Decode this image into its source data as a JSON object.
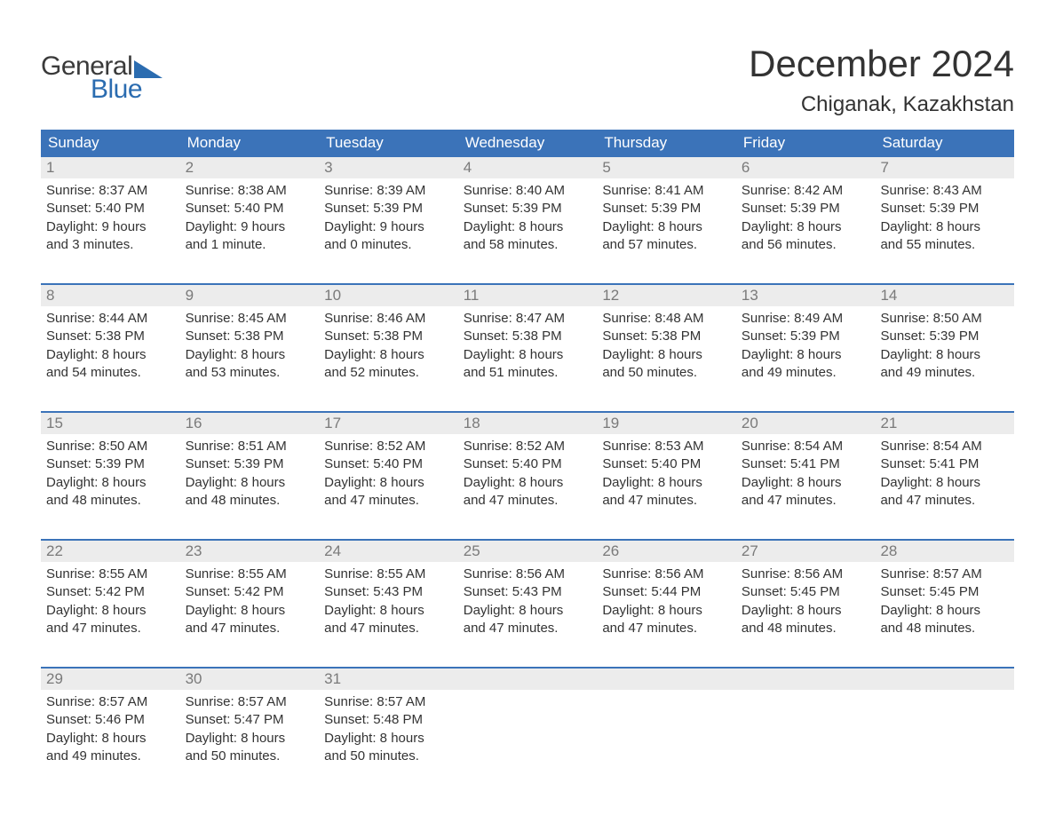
{
  "logo": {
    "general": "General",
    "blue": "Blue"
  },
  "title": "December 2024",
  "location": "Chiganak, Kazakhstan",
  "colors": {
    "brand_blue": "#3b73b9",
    "logo_blue": "#2b6cb0",
    "text": "#333333",
    "muted": "#7a7a7a",
    "stripe": "#ececec",
    "background": "#ffffff"
  },
  "typography": {
    "title_fontsize": 42,
    "location_fontsize": 24,
    "dayhead_fontsize": 17,
    "daynum_fontsize": 17,
    "body_fontsize": 15,
    "logo_fontsize": 30
  },
  "day_headers": [
    "Sunday",
    "Monday",
    "Tuesday",
    "Wednesday",
    "Thursday",
    "Friday",
    "Saturday"
  ],
  "weeks": [
    [
      {
        "n": "1",
        "sr": "Sunrise: 8:37 AM",
        "ss": "Sunset: 5:40 PM",
        "d1": "Daylight: 9 hours",
        "d2": "and 3 minutes."
      },
      {
        "n": "2",
        "sr": "Sunrise: 8:38 AM",
        "ss": "Sunset: 5:40 PM",
        "d1": "Daylight: 9 hours",
        "d2": "and 1 minute."
      },
      {
        "n": "3",
        "sr": "Sunrise: 8:39 AM",
        "ss": "Sunset: 5:39 PM",
        "d1": "Daylight: 9 hours",
        "d2": "and 0 minutes."
      },
      {
        "n": "4",
        "sr": "Sunrise: 8:40 AM",
        "ss": "Sunset: 5:39 PM",
        "d1": "Daylight: 8 hours",
        "d2": "and 58 minutes."
      },
      {
        "n": "5",
        "sr": "Sunrise: 8:41 AM",
        "ss": "Sunset: 5:39 PM",
        "d1": "Daylight: 8 hours",
        "d2": "and 57 minutes."
      },
      {
        "n": "6",
        "sr": "Sunrise: 8:42 AM",
        "ss": "Sunset: 5:39 PM",
        "d1": "Daylight: 8 hours",
        "d2": "and 56 minutes."
      },
      {
        "n": "7",
        "sr": "Sunrise: 8:43 AM",
        "ss": "Sunset: 5:39 PM",
        "d1": "Daylight: 8 hours",
        "d2": "and 55 minutes."
      }
    ],
    [
      {
        "n": "8",
        "sr": "Sunrise: 8:44 AM",
        "ss": "Sunset: 5:38 PM",
        "d1": "Daylight: 8 hours",
        "d2": "and 54 minutes."
      },
      {
        "n": "9",
        "sr": "Sunrise: 8:45 AM",
        "ss": "Sunset: 5:38 PM",
        "d1": "Daylight: 8 hours",
        "d2": "and 53 minutes."
      },
      {
        "n": "10",
        "sr": "Sunrise: 8:46 AM",
        "ss": "Sunset: 5:38 PM",
        "d1": "Daylight: 8 hours",
        "d2": "and 52 minutes."
      },
      {
        "n": "11",
        "sr": "Sunrise: 8:47 AM",
        "ss": "Sunset: 5:38 PM",
        "d1": "Daylight: 8 hours",
        "d2": "and 51 minutes."
      },
      {
        "n": "12",
        "sr": "Sunrise: 8:48 AM",
        "ss": "Sunset: 5:38 PM",
        "d1": "Daylight: 8 hours",
        "d2": "and 50 minutes."
      },
      {
        "n": "13",
        "sr": "Sunrise: 8:49 AM",
        "ss": "Sunset: 5:39 PM",
        "d1": "Daylight: 8 hours",
        "d2": "and 49 minutes."
      },
      {
        "n": "14",
        "sr": "Sunrise: 8:50 AM",
        "ss": "Sunset: 5:39 PM",
        "d1": "Daylight: 8 hours",
        "d2": "and 49 minutes."
      }
    ],
    [
      {
        "n": "15",
        "sr": "Sunrise: 8:50 AM",
        "ss": "Sunset: 5:39 PM",
        "d1": "Daylight: 8 hours",
        "d2": "and 48 minutes."
      },
      {
        "n": "16",
        "sr": "Sunrise: 8:51 AM",
        "ss": "Sunset: 5:39 PM",
        "d1": "Daylight: 8 hours",
        "d2": "and 48 minutes."
      },
      {
        "n": "17",
        "sr": "Sunrise: 8:52 AM",
        "ss": "Sunset: 5:40 PM",
        "d1": "Daylight: 8 hours",
        "d2": "and 47 minutes."
      },
      {
        "n": "18",
        "sr": "Sunrise: 8:52 AM",
        "ss": "Sunset: 5:40 PM",
        "d1": "Daylight: 8 hours",
        "d2": "and 47 minutes."
      },
      {
        "n": "19",
        "sr": "Sunrise: 8:53 AM",
        "ss": "Sunset: 5:40 PM",
        "d1": "Daylight: 8 hours",
        "d2": "and 47 minutes."
      },
      {
        "n": "20",
        "sr": "Sunrise: 8:54 AM",
        "ss": "Sunset: 5:41 PM",
        "d1": "Daylight: 8 hours",
        "d2": "and 47 minutes."
      },
      {
        "n": "21",
        "sr": "Sunrise: 8:54 AM",
        "ss": "Sunset: 5:41 PM",
        "d1": "Daylight: 8 hours",
        "d2": "and 47 minutes."
      }
    ],
    [
      {
        "n": "22",
        "sr": "Sunrise: 8:55 AM",
        "ss": "Sunset: 5:42 PM",
        "d1": "Daylight: 8 hours",
        "d2": "and 47 minutes."
      },
      {
        "n": "23",
        "sr": "Sunrise: 8:55 AM",
        "ss": "Sunset: 5:42 PM",
        "d1": "Daylight: 8 hours",
        "d2": "and 47 minutes."
      },
      {
        "n": "24",
        "sr": "Sunrise: 8:55 AM",
        "ss": "Sunset: 5:43 PM",
        "d1": "Daylight: 8 hours",
        "d2": "and 47 minutes."
      },
      {
        "n": "25",
        "sr": "Sunrise: 8:56 AM",
        "ss": "Sunset: 5:43 PM",
        "d1": "Daylight: 8 hours",
        "d2": "and 47 minutes."
      },
      {
        "n": "26",
        "sr": "Sunrise: 8:56 AM",
        "ss": "Sunset: 5:44 PM",
        "d1": "Daylight: 8 hours",
        "d2": "and 47 minutes."
      },
      {
        "n": "27",
        "sr": "Sunrise: 8:56 AM",
        "ss": "Sunset: 5:45 PM",
        "d1": "Daylight: 8 hours",
        "d2": "and 48 minutes."
      },
      {
        "n": "28",
        "sr": "Sunrise: 8:57 AM",
        "ss": "Sunset: 5:45 PM",
        "d1": "Daylight: 8 hours",
        "d2": "and 48 minutes."
      }
    ],
    [
      {
        "n": "29",
        "sr": "Sunrise: 8:57 AM",
        "ss": "Sunset: 5:46 PM",
        "d1": "Daylight: 8 hours",
        "d2": "and 49 minutes."
      },
      {
        "n": "30",
        "sr": "Sunrise: 8:57 AM",
        "ss": "Sunset: 5:47 PM",
        "d1": "Daylight: 8 hours",
        "d2": "and 50 minutes."
      },
      {
        "n": "31",
        "sr": "Sunrise: 8:57 AM",
        "ss": "Sunset: 5:48 PM",
        "d1": "Daylight: 8 hours",
        "d2": "and 50 minutes."
      },
      {
        "n": "",
        "sr": "",
        "ss": "",
        "d1": "",
        "d2": ""
      },
      {
        "n": "",
        "sr": "",
        "ss": "",
        "d1": "",
        "d2": ""
      },
      {
        "n": "",
        "sr": "",
        "ss": "",
        "d1": "",
        "d2": ""
      },
      {
        "n": "",
        "sr": "",
        "ss": "",
        "d1": "",
        "d2": ""
      }
    ]
  ]
}
